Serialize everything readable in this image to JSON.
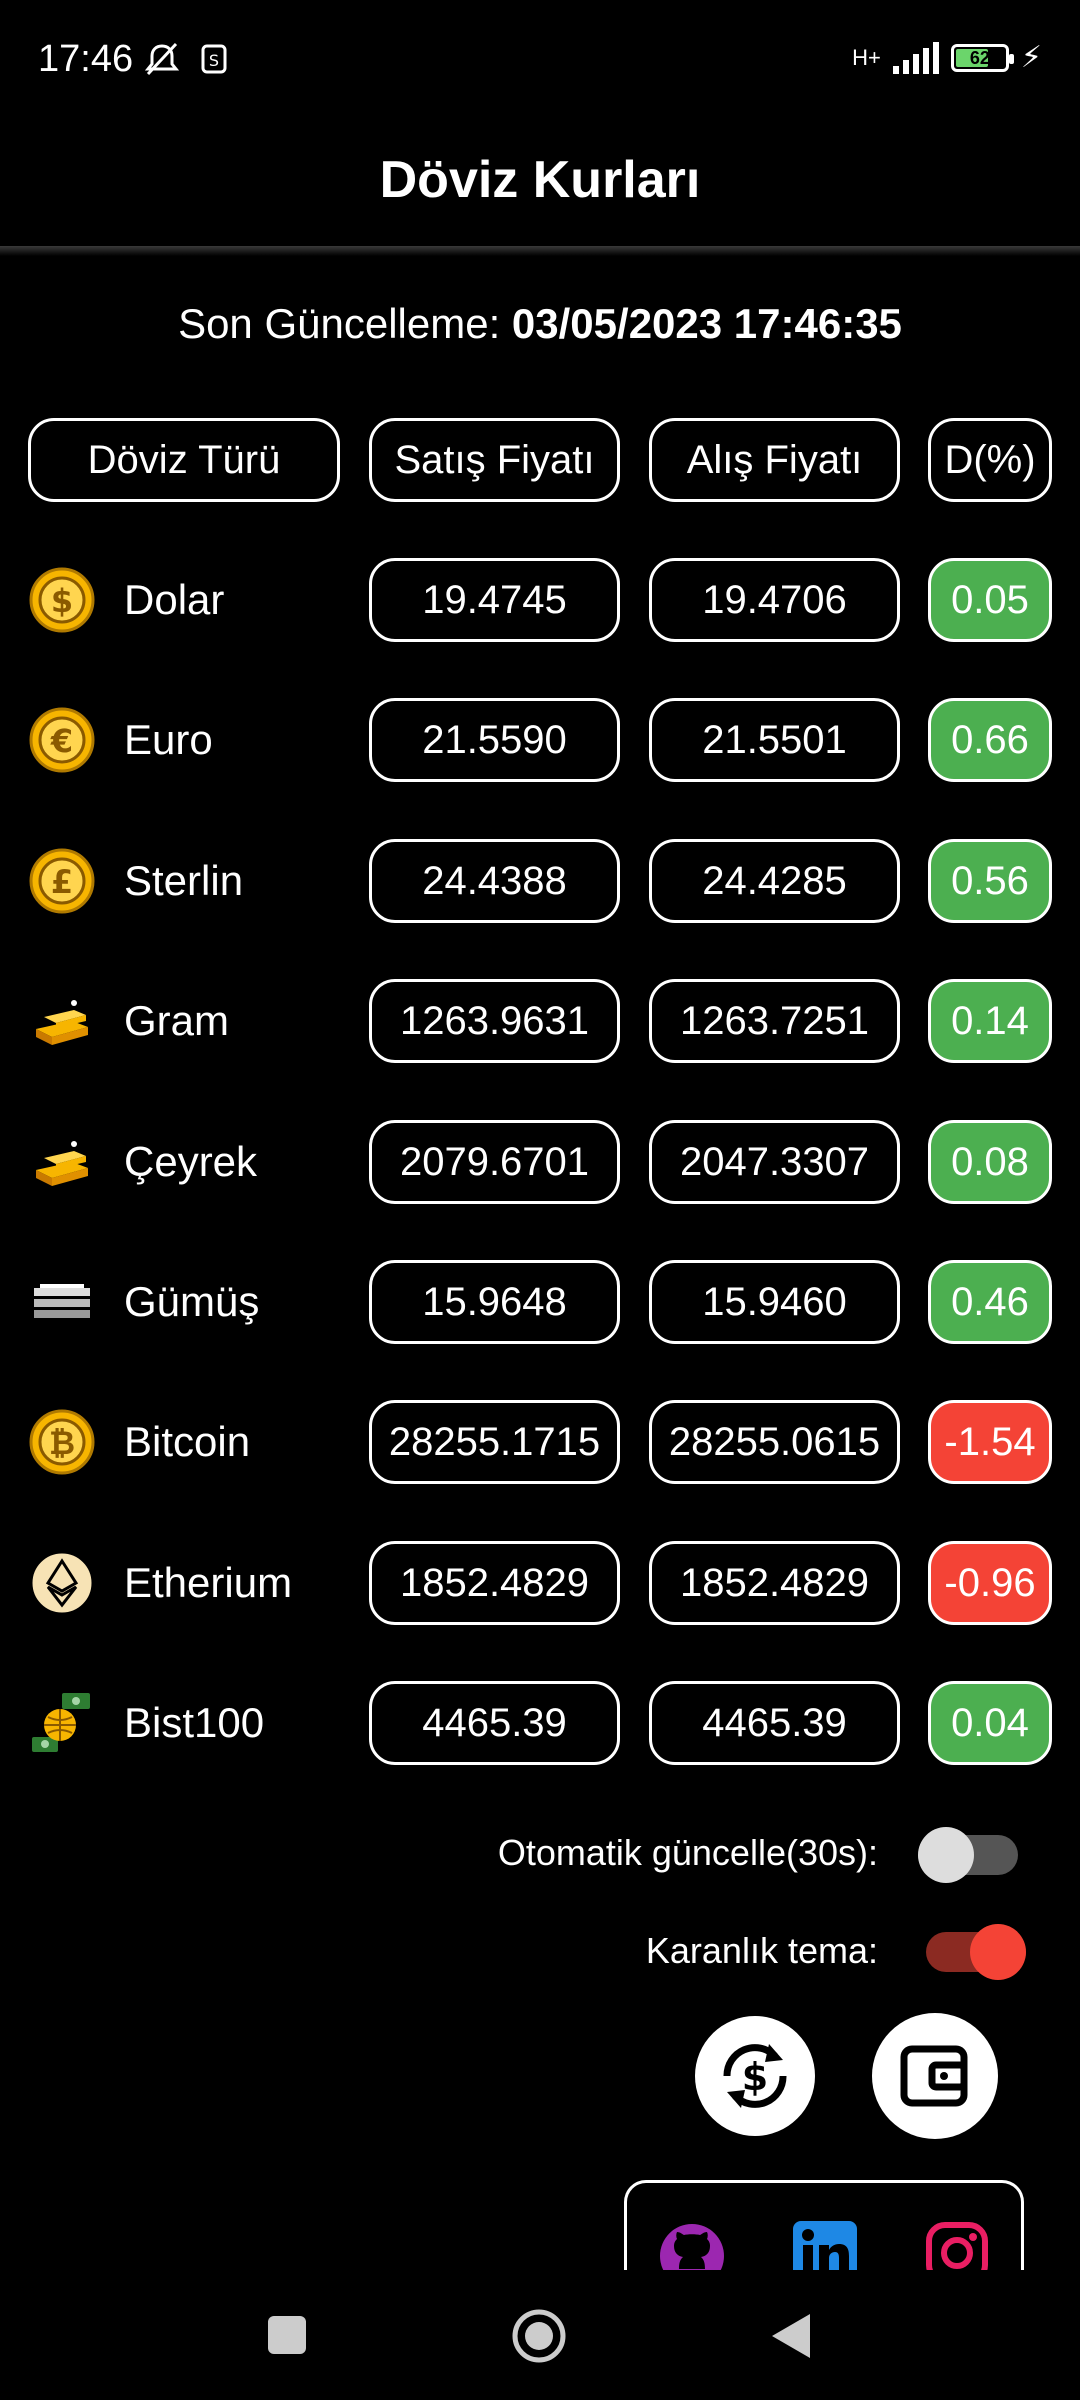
{
  "status_bar": {
    "time": "17:46",
    "network": "H+",
    "battery": "62"
  },
  "app_bar": {
    "title": "Döviz Kurları"
  },
  "last_update": {
    "label": "Son Güncelleme:",
    "value": "03/05/2023 17:46:35"
  },
  "table": {
    "headers": [
      "Döviz Türü",
      "Satış Fiyatı",
      "Alış Fiyatı",
      "D(%)"
    ],
    "rows": [
      {
        "name": "Dolar",
        "icon": "dollar-coin-icon",
        "sell": "19.4745",
        "buy": "19.4706",
        "change": "0.05",
        "trend": "up"
      },
      {
        "name": "Euro",
        "icon": "euro-coin-icon",
        "sell": "21.5590",
        "buy": "21.5501",
        "change": "0.66",
        "trend": "up"
      },
      {
        "name": "Sterlin",
        "icon": "pound-coin-icon",
        "sell": "24.4388",
        "buy": "24.4285",
        "change": "0.56",
        "trend": "up"
      },
      {
        "name": "Gram",
        "icon": "gold-bar-icon",
        "sell": "1263.9631",
        "buy": "1263.7251",
        "change": "0.14",
        "trend": "up"
      },
      {
        "name": "Çeyrek",
        "icon": "gold-bar-icon",
        "sell": "2079.6701",
        "buy": "2047.3307",
        "change": "0.08",
        "trend": "up"
      },
      {
        "name": "Gümüş",
        "icon": "silver-bar-icon",
        "sell": "15.9648",
        "buy": "15.9460",
        "change": "0.46",
        "trend": "up"
      },
      {
        "name": "Bitcoin",
        "icon": "bitcoin-coin-icon",
        "sell": "28255.1715",
        "buy": "28255.0615",
        "change": "-1.54",
        "trend": "down"
      },
      {
        "name": "Etherium",
        "icon": "ethereum-coin-icon",
        "sell": "1852.4829",
        "buy": "1852.4829",
        "change": "-0.96",
        "trend": "down"
      },
      {
        "name": "Bist100",
        "icon": "globe-money-icon",
        "sell": "4465.39",
        "buy": "4465.39",
        "change": "0.04",
        "trend": "up"
      }
    ]
  },
  "settings": {
    "auto_update_label": "Otomatik güncelle(30s):",
    "auto_update_on": false,
    "dark_theme_label": "Karanlık tema:",
    "dark_theme_on": true
  },
  "actions": [
    {
      "name": "currency-convert-button",
      "icon": "currency-exchange-icon"
    },
    {
      "name": "wallet-button",
      "icon": "wallet-icon"
    }
  ],
  "social_links": [
    {
      "name": "github-link",
      "icon": "github-icon",
      "color": "#9c27b0"
    },
    {
      "name": "linkedin-link",
      "icon": "linkedin-icon",
      "color": "#1e88e5"
    },
    {
      "name": "instagram-link",
      "icon": "instagram-icon",
      "color": "#e91e63"
    }
  ],
  "colors": {
    "up": "#4caf50",
    "down": "#f44336",
    "accent": "#f44336",
    "coin_gold": "#f7b500"
  }
}
